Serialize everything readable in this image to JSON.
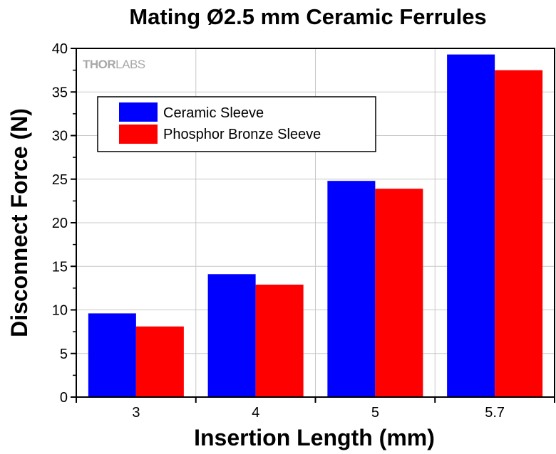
{
  "chart_data": {
    "type": "bar",
    "title": "Mating Ø2.5 mm Ceramic Ferrules",
    "xlabel": "Insertion Length (mm)",
    "ylabel": "Disconnect Force (N)",
    "categories": [
      "3",
      "4",
      "5",
      "5.7"
    ],
    "series": [
      {
        "name": "Ceramic Sleeve",
        "color": "#0000ff",
        "values": [
          9.6,
          14.1,
          24.8,
          39.3
        ]
      },
      {
        "name": "Phosphor Bronze Sleeve",
        "color": "#ff0000",
        "values": [
          8.1,
          12.9,
          23.9,
          37.5
        ]
      }
    ],
    "ylim": [
      0,
      40
    ],
    "yticks": [
      "0",
      "5",
      "10",
      "15",
      "20",
      "25",
      "30",
      "35",
      "40"
    ],
    "grid": true,
    "legend_position": "top-left",
    "watermark": {
      "part1": "THOR",
      "part2": "LABS"
    }
  }
}
